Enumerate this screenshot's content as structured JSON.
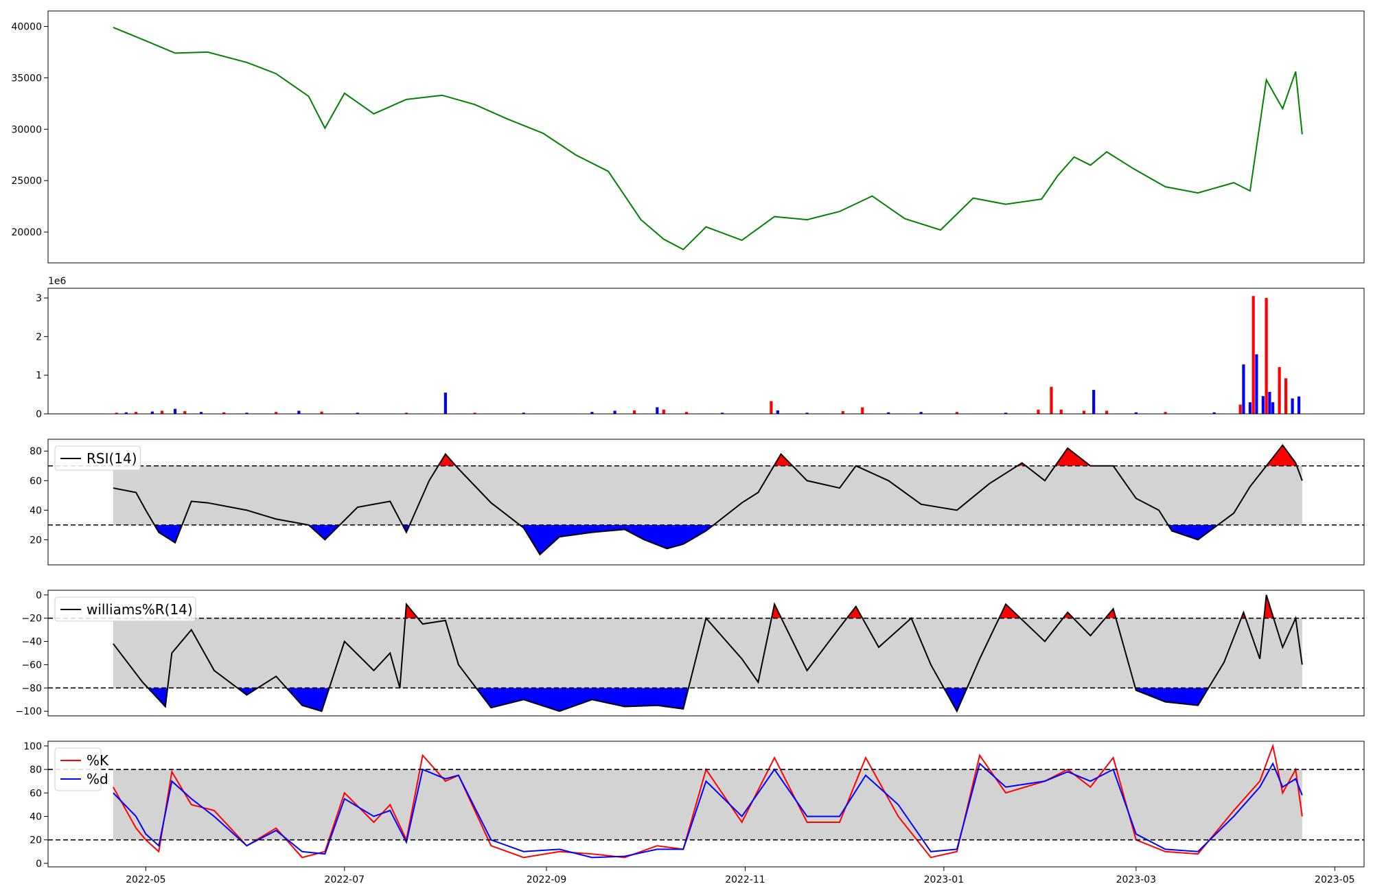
{
  "chart_data": [
    {
      "panel": "price",
      "type": "line",
      "color": "#008000",
      "ylim": [
        17000,
        41500
      ],
      "yticks": [
        "20000",
        "25000",
        "30000",
        "35000",
        "40000"
      ],
      "ytick_values": [
        20000,
        25000,
        30000,
        35000,
        40000
      ],
      "x": [
        "2022-04-21",
        "2022-05-01",
        "2022-05-10",
        "2022-05-20",
        "2022-06-01",
        "2022-06-10",
        "2022-06-20",
        "2022-06-25",
        "2022-07-01",
        "2022-07-10",
        "2022-07-20",
        "2022-07-31",
        "2022-08-10",
        "2022-08-20",
        "2022-08-31",
        "2022-09-10",
        "2022-09-20",
        "2022-09-30",
        "2022-10-07",
        "2022-10-13",
        "2022-10-20",
        "2022-10-31",
        "2022-11-10",
        "2022-11-20",
        "2022-11-30",
        "2022-12-10",
        "2022-12-20",
        "2022-12-31",
        "2023-01-10",
        "2023-01-20",
        "2023-01-31",
        "2023-02-05",
        "2023-02-10",
        "2023-02-15",
        "2023-02-20",
        "2023-02-28",
        "2023-03-10",
        "2023-03-20",
        "2023-03-31",
        "2023-04-05",
        "2023-04-10",
        "2023-04-15",
        "2023-04-19",
        "2023-04-21"
      ],
      "values": [
        39900,
        38600,
        37400,
        37500,
        36500,
        35400,
        33200,
        30100,
        33500,
        31500,
        32900,
        33300,
        32400,
        31000,
        29600,
        27500,
        25900,
        21200,
        19300,
        18300,
        20500,
        19200,
        21500,
        21200,
        22000,
        23500,
        21300,
        20200,
        23300,
        22700,
        23200,
        25500,
        27300,
        26500,
        27800,
        26200,
        24400,
        23800,
        24800,
        24000,
        34800,
        32000,
        35600,
        29500
      ]
    },
    {
      "panel": "volume",
      "type": "bar",
      "scale_label": "1e6",
      "ylim": [
        0,
        3250000
      ],
      "yticks": [
        "0",
        "1",
        "2",
        "3"
      ],
      "ytick_values": [
        0,
        1000000,
        2000000,
        3000000
      ],
      "up_color": "#ff0000",
      "down_color": "#0000ff",
      "bars": [
        {
          "x": "2022-04-22",
          "v": 30000,
          "c": "up"
        },
        {
          "x": "2022-04-25",
          "v": 40000,
          "c": "down"
        },
        {
          "x": "2022-04-28",
          "v": 50000,
          "c": "up"
        },
        {
          "x": "2022-05-03",
          "v": 60000,
          "c": "down"
        },
        {
          "x": "2022-05-06",
          "v": 80000,
          "c": "up"
        },
        {
          "x": "2022-05-10",
          "v": 130000,
          "c": "down"
        },
        {
          "x": "2022-05-13",
          "v": 70000,
          "c": "up"
        },
        {
          "x": "2022-05-18",
          "v": 50000,
          "c": "down"
        },
        {
          "x": "2022-05-25",
          "v": 40000,
          "c": "up"
        },
        {
          "x": "2022-06-01",
          "v": 30000,
          "c": "down"
        },
        {
          "x": "2022-06-10",
          "v": 50000,
          "c": "up"
        },
        {
          "x": "2022-06-17",
          "v": 80000,
          "c": "down"
        },
        {
          "x": "2022-06-24",
          "v": 60000,
          "c": "up"
        },
        {
          "x": "2022-07-05",
          "v": 30000,
          "c": "down"
        },
        {
          "x": "2022-07-20",
          "v": 30000,
          "c": "up"
        },
        {
          "x": "2022-08-01",
          "v": 550000,
          "c": "down"
        },
        {
          "x": "2022-08-10",
          "v": 30000,
          "c": "up"
        },
        {
          "x": "2022-08-25",
          "v": 30000,
          "c": "down"
        },
        {
          "x": "2022-09-15",
          "v": 50000,
          "c": "down"
        },
        {
          "x": "2022-09-22",
          "v": 80000,
          "c": "down"
        },
        {
          "x": "2022-09-28",
          "v": 90000,
          "c": "up"
        },
        {
          "x": "2022-10-05",
          "v": 170000,
          "c": "down"
        },
        {
          "x": "2022-10-07",
          "v": 110000,
          "c": "up"
        },
        {
          "x": "2022-10-14",
          "v": 50000,
          "c": "up"
        },
        {
          "x": "2022-10-25",
          "v": 30000,
          "c": "down"
        },
        {
          "x": "2022-11-09",
          "v": 330000,
          "c": "up"
        },
        {
          "x": "2022-11-11",
          "v": 90000,
          "c": "down"
        },
        {
          "x": "2022-11-20",
          "v": 30000,
          "c": "down"
        },
        {
          "x": "2022-12-01",
          "v": 70000,
          "c": "up"
        },
        {
          "x": "2022-12-07",
          "v": 170000,
          "c": "up"
        },
        {
          "x": "2022-12-15",
          "v": 40000,
          "c": "down"
        },
        {
          "x": "2022-12-25",
          "v": 50000,
          "c": "down"
        },
        {
          "x": "2023-01-05",
          "v": 50000,
          "c": "up"
        },
        {
          "x": "2023-01-20",
          "v": 30000,
          "c": "down"
        },
        {
          "x": "2023-01-30",
          "v": 110000,
          "c": "up"
        },
        {
          "x": "2023-02-03",
          "v": 700000,
          "c": "up"
        },
        {
          "x": "2023-02-06",
          "v": 110000,
          "c": "up"
        },
        {
          "x": "2023-02-13",
          "v": 80000,
          "c": "up"
        },
        {
          "x": "2023-02-16",
          "v": 620000,
          "c": "down"
        },
        {
          "x": "2023-02-20",
          "v": 80000,
          "c": "up"
        },
        {
          "x": "2023-03-01",
          "v": 40000,
          "c": "down"
        },
        {
          "x": "2023-03-10",
          "v": 50000,
          "c": "up"
        },
        {
          "x": "2023-03-25",
          "v": 40000,
          "c": "down"
        },
        {
          "x": "2023-04-02",
          "v": 240000,
          "c": "up"
        },
        {
          "x": "2023-04-03",
          "v": 1280000,
          "c": "down"
        },
        {
          "x": "2023-04-05",
          "v": 300000,
          "c": "down"
        },
        {
          "x": "2023-04-06",
          "v": 3050000,
          "c": "up"
        },
        {
          "x": "2023-04-07",
          "v": 1540000,
          "c": "down"
        },
        {
          "x": "2023-04-09",
          "v": 460000,
          "c": "down"
        },
        {
          "x": "2023-04-10",
          "v": 3000000,
          "c": "up"
        },
        {
          "x": "2023-04-11",
          "v": 570000,
          "c": "down"
        },
        {
          "x": "2023-04-12",
          "v": 300000,
          "c": "down"
        },
        {
          "x": "2023-04-14",
          "v": 1210000,
          "c": "up"
        },
        {
          "x": "2023-04-16",
          "v": 920000,
          "c": "up"
        },
        {
          "x": "2023-04-18",
          "v": 400000,
          "c": "down"
        },
        {
          "x": "2023-04-20",
          "v": 450000,
          "c": "down"
        }
      ]
    },
    {
      "panel": "rsi",
      "type": "area",
      "legend": [
        "RSI(14)"
      ],
      "legend_placement": "top-left",
      "ylim": [
        3,
        88
      ],
      "yticks": [
        "20",
        "40",
        "60",
        "80"
      ],
      "ytick_values": [
        20,
        40,
        60,
        80
      ],
      "upper": 70,
      "lower": 30,
      "band_color": "#d3d3d3",
      "over_color": "#ff0000",
      "under_color": "#0000ff",
      "x": [
        "2022-04-21",
        "2022-04-28",
        "2022-05-01",
        "2022-05-05",
        "2022-05-10",
        "2022-05-15",
        "2022-05-20",
        "2022-06-01",
        "2022-06-10",
        "2022-06-20",
        "2022-06-25",
        "2022-07-05",
        "2022-07-15",
        "2022-07-20",
        "2022-07-27",
        "2022-08-01",
        "2022-08-05",
        "2022-08-15",
        "2022-08-25",
        "2022-08-30",
        "2022-09-05",
        "2022-09-15",
        "2022-09-25",
        "2022-10-01",
        "2022-10-08",
        "2022-10-13",
        "2022-10-20",
        "2022-10-31",
        "2022-11-05",
        "2022-11-12",
        "2022-11-20",
        "2022-11-30",
        "2022-12-05",
        "2022-12-15",
        "2022-12-25",
        "2023-01-05",
        "2023-01-15",
        "2023-01-25",
        "2023-02-01",
        "2023-02-08",
        "2023-02-15",
        "2023-02-22",
        "2023-03-01",
        "2023-03-08",
        "2023-03-12",
        "2023-03-20",
        "2023-03-31",
        "2023-04-05",
        "2023-04-10",
        "2023-04-15",
        "2023-04-19",
        "2023-04-21"
      ],
      "values": [
        55,
        52,
        40,
        25,
        18,
        46,
        45,
        40,
        34,
        30,
        20,
        42,
        46,
        25,
        60,
        78,
        68,
        45,
        28,
        10,
        22,
        25,
        27,
        20,
        14,
        17,
        26,
        45,
        52,
        78,
        60,
        55,
        70,
        60,
        44,
        40,
        58,
        72,
        60,
        82,
        70,
        70,
        48,
        40,
        26,
        20,
        38,
        56,
        70,
        84,
        72,
        60
      ]
    },
    {
      "panel": "williams",
      "type": "area",
      "legend": [
        "williams%R(14)"
      ],
      "legend_placement": "top-left",
      "ylim": [
        -104,
        4
      ],
      "yticks": [
        "0",
        "−20",
        "−40",
        "−60",
        "−80",
        "−100"
      ],
      "ytick_values": [
        0,
        -20,
        -40,
        -60,
        -80,
        -100
      ],
      "upper": -20,
      "lower": -80,
      "band_color": "#d3d3d3",
      "over_color": "#ff0000",
      "under_color": "#0000ff",
      "x": [
        "2022-04-21",
        "2022-04-30",
        "2022-05-07",
        "2022-05-09",
        "2022-05-15",
        "2022-05-22",
        "2022-06-01",
        "2022-06-10",
        "2022-06-18",
        "2022-06-24",
        "2022-07-01",
        "2022-07-10",
        "2022-07-15",
        "2022-07-18",
        "2022-07-20",
        "2022-07-25",
        "2022-08-01",
        "2022-08-05",
        "2022-08-15",
        "2022-08-25",
        "2022-09-05",
        "2022-09-15",
        "2022-09-25",
        "2022-10-05",
        "2022-10-13",
        "2022-10-20",
        "2022-10-31",
        "2022-11-05",
        "2022-11-10",
        "2022-11-20",
        "2022-11-30",
        "2022-12-05",
        "2022-12-12",
        "2022-12-22",
        "2022-12-28",
        "2023-01-05",
        "2023-01-12",
        "2023-01-20",
        "2023-02-01",
        "2023-02-08",
        "2023-02-15",
        "2023-02-22",
        "2023-03-01",
        "2023-03-10",
        "2023-03-20",
        "2023-03-28",
        "2023-04-03",
        "2023-04-08",
        "2023-04-10",
        "2023-04-15",
        "2023-04-19",
        "2023-04-21"
      ],
      "values": [
        -42,
        -75,
        -96,
        -50,
        -30,
        -65,
        -86,
        -70,
        -95,
        -100,
        -40,
        -65,
        -50,
        -80,
        -8,
        -25,
        -22,
        -60,
        -97,
        -90,
        -100,
        -90,
        -96,
        -95,
        -98,
        -20,
        -55,
        -75,
        -8,
        -65,
        -28,
        -10,
        -45,
        -20,
        -60,
        -100,
        -55,
        -8,
        -40,
        -15,
        -35,
        -12,
        -82,
        -92,
        -95,
        -58,
        -15,
        -55,
        0,
        -45,
        -20,
        -60
      ]
    },
    {
      "panel": "stochastic",
      "type": "line",
      "legend": [
        "%K",
        "%d"
      ],
      "legend_placement": "top-left",
      "ylim": [
        -3,
        104
      ],
      "yticks": [
        "0",
        "20",
        "40",
        "60",
        "80",
        "100"
      ],
      "ytick_values": [
        0,
        20,
        40,
        60,
        80,
        100
      ],
      "upper": 80,
      "lower": 20,
      "band_color": "#d3d3d3",
      "xticks": [
        "2022-05",
        "2022-07",
        "2022-09",
        "2022-11",
        "2023-01",
        "2023-03",
        "2023-05"
      ],
      "xtick_values": [
        "2022-05-01",
        "2022-07-01",
        "2022-09-01",
        "2022-11-01",
        "2023-01-01",
        "2023-03-01",
        "2023-05-01"
      ],
      "x": [
        "2022-04-21",
        "2022-04-28",
        "2022-05-01",
        "2022-05-05",
        "2022-05-09",
        "2022-05-15",
        "2022-05-22",
        "2022-06-01",
        "2022-06-10",
        "2022-06-18",
        "2022-06-25",
        "2022-07-01",
        "2022-07-10",
        "2022-07-15",
        "2022-07-20",
        "2022-07-25",
        "2022-08-01",
        "2022-08-05",
        "2022-08-15",
        "2022-08-25",
        "2022-09-05",
        "2022-09-15",
        "2022-09-25",
        "2022-10-05",
        "2022-10-13",
        "2022-10-20",
        "2022-10-31",
        "2022-11-10",
        "2022-11-20",
        "2022-11-30",
        "2022-12-08",
        "2022-12-18",
        "2022-12-28",
        "2023-01-05",
        "2023-01-12",
        "2023-01-20",
        "2023-02-01",
        "2023-02-08",
        "2023-02-15",
        "2023-02-22",
        "2023-03-01",
        "2023-03-10",
        "2023-03-20",
        "2023-03-31",
        "2023-04-08",
        "2023-04-12",
        "2023-04-15",
        "2023-04-19",
        "2023-04-21"
      ],
      "series": [
        {
          "name": "%K",
          "color": "#ff0000",
          "values": [
            65,
            30,
            20,
            10,
            78,
            50,
            45,
            15,
            30,
            5,
            10,
            60,
            35,
            50,
            20,
            92,
            70,
            75,
            15,
            5,
            10,
            8,
            5,
            15,
            12,
            80,
            35,
            90,
            35,
            35,
            90,
            40,
            5,
            10,
            92,
            60,
            70,
            80,
            65,
            90,
            20,
            10,
            8,
            45,
            70,
            100,
            60,
            80,
            40
          ]
        },
        {
          "name": "%d",
          "color": "#0000ff",
          "values": [
            60,
            40,
            25,
            15,
            70,
            55,
            40,
            15,
            28,
            10,
            8,
            55,
            40,
            45,
            18,
            80,
            72,
            75,
            20,
            10,
            12,
            5,
            6,
            12,
            12,
            70,
            40,
            80,
            40,
            40,
            75,
            50,
            10,
            12,
            85,
            65,
            70,
            78,
            70,
            80,
            25,
            12,
            10,
            40,
            65,
            85,
            65,
            72,
            58
          ]
        }
      ]
    }
  ]
}
